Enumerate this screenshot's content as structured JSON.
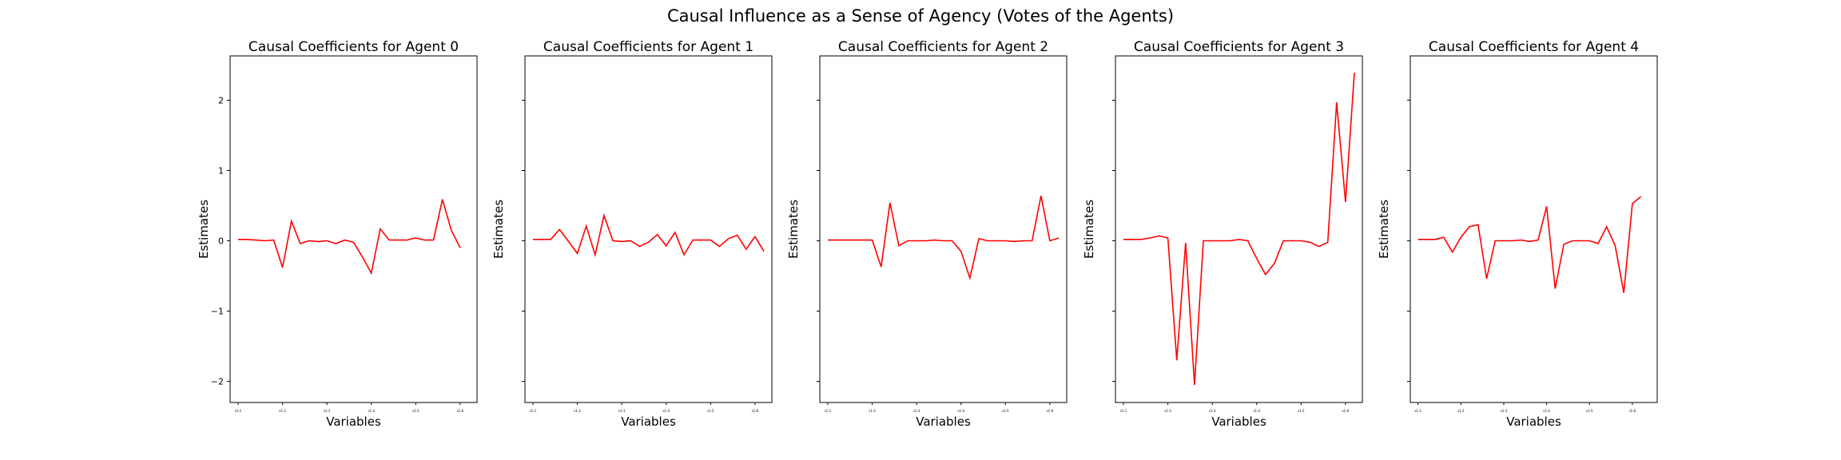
{
  "figure": {
    "title": "Causal Influence as a Sense of Agency (Votes of the Agents)"
  },
  "chart_data": [
    {
      "type": "line",
      "title": "Causal Coefficients for Agent 0",
      "xlabel": "Variables",
      "ylabel": "Estimates",
      "ylim": [
        -2.3,
        2.63
      ],
      "yticks": [
        -2,
        -1,
        0,
        1,
        2
      ],
      "xtick_labels": [
        "s1-1",
        "s1-2",
        "s1-3",
        "s1-4",
        "s1-5",
        "s1-6"
      ],
      "xtick_positions": [
        0,
        5,
        10,
        15,
        20,
        25
      ],
      "series": [
        {
          "color": "#ff0000",
          "x": [
            0,
            1,
            2,
            3,
            4,
            5,
            6,
            7,
            8,
            9,
            10,
            11,
            12,
            13,
            14,
            15,
            16,
            17,
            18,
            19,
            20,
            21,
            22,
            23,
            24,
            25,
            26
          ],
          "values": [
            0.02,
            0.02,
            0.01,
            0.0,
            0.01,
            -0.38,
            0.28,
            -0.04,
            0.0,
            -0.01,
            0.0,
            -0.04,
            0.01,
            -0.02,
            -0.23,
            -0.46,
            0.17,
            0.01,
            0.01,
            0.01,
            0.04,
            0.01,
            0.01,
            0.59,
            0.15,
            -0.1,
            null
          ]
        }
      ]
    },
    {
      "type": "line",
      "title": "Causal Coefficients for Agent 1",
      "xlabel": "Variables",
      "ylabel": "Estimates",
      "ylim": [
        -2.3,
        2.63
      ],
      "yticks": [
        -2,
        -1,
        0,
        1,
        2
      ],
      "xtick_labels": [
        "s1-1",
        "s1-2",
        "s1-3",
        "s1-4",
        "s1-5",
        "s1-6"
      ],
      "xtick_positions": [
        0,
        5,
        10,
        15,
        20,
        25
      ],
      "series": [
        {
          "color": "#ff0000",
          "x": [
            0,
            1,
            2,
            3,
            4,
            5,
            6,
            7,
            8,
            9,
            10,
            11,
            12,
            13,
            14,
            15,
            16,
            17,
            18,
            19,
            20,
            21,
            22,
            23,
            24,
            25,
            26
          ],
          "values": [
            0.02,
            0.02,
            0.02,
            0.16,
            -0.01,
            -0.18,
            0.21,
            -0.2,
            0.36,
            0.0,
            -0.01,
            0.0,
            -0.08,
            -0.02,
            0.09,
            -0.07,
            0.12,
            -0.2,
            0.01,
            0.01,
            0.01,
            -0.08,
            0.03,
            0.08,
            -0.12,
            0.06,
            -0.15
          ]
        }
      ]
    },
    {
      "type": "line",
      "title": "Causal Coefficients for Agent 2",
      "xlabel": "Variables",
      "ylabel": "Estimates",
      "ylim": [
        -2.3,
        2.63
      ],
      "yticks": [
        -2,
        -1,
        0,
        1,
        2
      ],
      "xtick_labels": [
        "s1-1",
        "s1-2",
        "s1-3",
        "s1-4",
        "s1-5",
        "s1-6"
      ],
      "xtick_positions": [
        0,
        5,
        10,
        15,
        20,
        25
      ],
      "series": [
        {
          "color": "#ff0000",
          "x": [
            0,
            1,
            2,
            3,
            4,
            5,
            6,
            7,
            8,
            9,
            10,
            11,
            12,
            13,
            14,
            15,
            16,
            17,
            18,
            19,
            20,
            21,
            22,
            23,
            24,
            25,
            26
          ],
          "values": [
            0.01,
            0.01,
            0.01,
            0.01,
            0.01,
            0.01,
            -0.37,
            0.54,
            -0.07,
            0.0,
            0.0,
            0.0,
            0.01,
            0.0,
            0.0,
            -0.15,
            -0.53,
            0.03,
            0.0,
            0.0,
            0.0,
            -0.01,
            0.0,
            0.0,
            0.64,
            0.0,
            0.04
          ]
        }
      ]
    },
    {
      "type": "line",
      "title": "Causal Coefficients for Agent 3",
      "xlabel": "Variables",
      "ylabel": "Estimates",
      "ylim": [
        -2.3,
        2.63
      ],
      "yticks": [
        -2,
        -1,
        0,
        1,
        2
      ],
      "xtick_labels": [
        "s1-1",
        "s1-2",
        "s1-3",
        "s1-4",
        "s1-5",
        "s1-6"
      ],
      "xtick_positions": [
        0,
        5,
        10,
        15,
        20,
        25
      ],
      "series": [
        {
          "color": "#ff0000",
          "x": [
            0,
            1,
            2,
            3,
            4,
            5,
            6,
            7,
            8,
            9,
            10,
            11,
            12,
            13,
            14,
            15,
            16,
            17,
            18,
            19,
            20,
            21,
            22,
            23,
            24,
            25,
            26
          ],
          "values": [
            0.02,
            0.02,
            0.02,
            0.04,
            0.07,
            0.04,
            -1.7,
            -0.03,
            -2.05,
            0.0,
            0.0,
            0.0,
            0.0,
            0.02,
            0.0,
            -0.25,
            -0.48,
            -0.32,
            0.0,
            0.0,
            0.0,
            -0.02,
            -0.08,
            -0.02,
            1.97,
            0.55,
            2.39
          ]
        }
      ]
    },
    {
      "type": "line",
      "title": "Causal Coefficients for Agent 4",
      "xlabel": "Variables",
      "ylabel": "Estimates",
      "ylim": [
        -2.3,
        2.63
      ],
      "yticks": [
        -2,
        -1,
        0,
        1,
        2
      ],
      "xtick_labels": [
        "s1-1",
        "s1-2",
        "s1-3",
        "s1-4",
        "s1-5",
        "s1-6"
      ],
      "xtick_positions": [
        0,
        5,
        10,
        15,
        20,
        25
      ],
      "series": [
        {
          "color": "#ff0000",
          "x": [
            0,
            1,
            2,
            3,
            4,
            5,
            6,
            7,
            8,
            9,
            10,
            11,
            12,
            13,
            14,
            15,
            16,
            17,
            18,
            19,
            20,
            21,
            22,
            23,
            24,
            25,
            26,
            27
          ],
          "values": [
            0.02,
            0.02,
            0.02,
            0.05,
            -0.16,
            0.05,
            0.2,
            0.23,
            -0.54,
            0.0,
            0.0,
            0.0,
            0.01,
            -0.01,
            0.01,
            0.49,
            -0.68,
            -0.05,
            0.0,
            0.0,
            0.0,
            -0.04,
            0.2,
            -0.07,
            -0.74,
            0.53,
            0.63,
            null
          ]
        }
      ]
    }
  ]
}
